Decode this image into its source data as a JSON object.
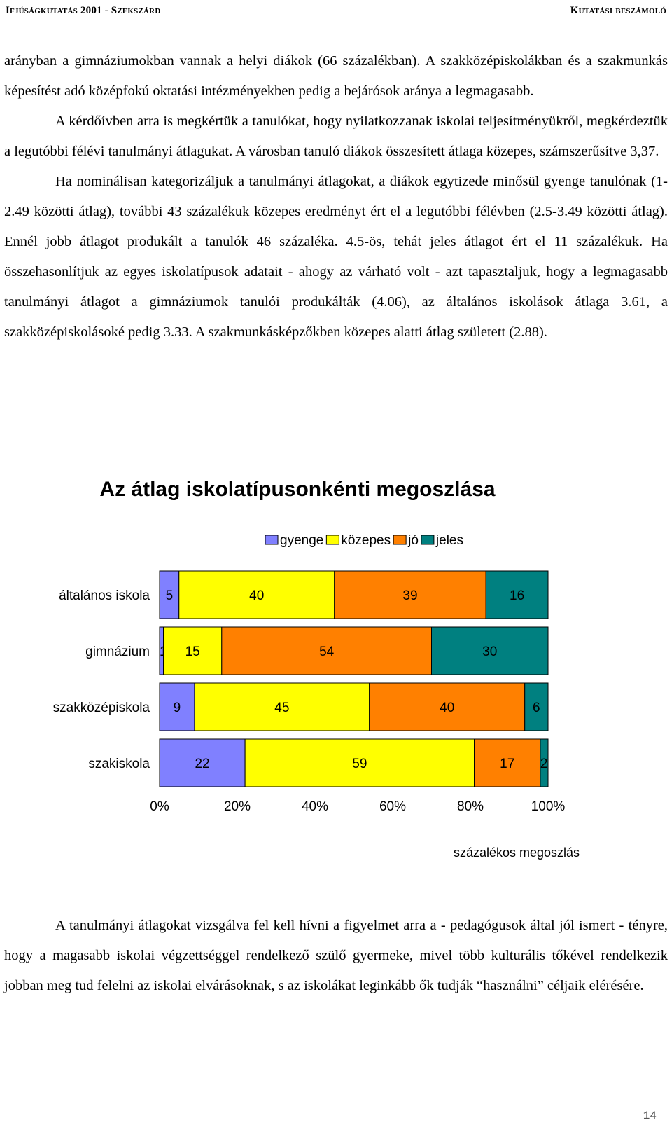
{
  "header": {
    "left": "Ifjúságkutatás 2001 - Szekszárd",
    "right": "Kutatási beszámoló"
  },
  "paragraphs_top": [
    "arányban a gimnáziumokban vannak a helyi diákok (66 százalékban). A szakközépiskolákban és a szakmunkás képesítést adó középfokú oktatási intézményekben pedig a bejárósok aránya a legmagasabb.",
    "A kérdőívben arra is megkértük a tanulókat, hogy nyilatkozzanak iskolai teljesítményükről, megkérdeztük a legutóbbi félévi tanulmányi átlagukat. A városban tanuló diákok összesített átlaga közepes, számszerűsítve 3,37.",
    "Ha nominálisan kategorizáljuk a tanulmányi átlagokat, a diákok egytizede minősül gyenge tanulónak (1-2.49 közötti átlag), további 43 százalékuk közepes eredményt ért el a legutóbbi félévben (2.5-3.49 közötti átlag). Ennél jobb átlagot produkált a tanulók 46 százaléka. 4.5-ös, tehát jeles átlagot ért el 11 százalékuk. Ha összehasonlítjuk az egyes iskolatípusok adatait - ahogy az várható volt - azt tapasztaljuk, hogy a legmagasabb tanulmányi átlagot a gimnáziumok tanulói produkálták (4.06), az általános iskolások átlaga 3.61, a szakközépiskolásoké pedig 3.33. A szakmunkásképzőkben közepes alatti átlag született (2.88)."
  ],
  "paragraph_bottom": "A tanulmányi átlagokat vizsgálva fel kell hívni a figyelmet arra a - pedagógusok által jól ismert - tényre, hogy a magasabb iskolai végzettséggel rendelkező szülő gyermeke, mivel több kulturális tőkével rendelkezik jobban meg tud felelni az iskolai elvárásoknak, s az iskolákat leginkább ők tudják “használni” céljaik elérésére.",
  "page_number": "14",
  "chart_data": {
    "type": "bar",
    "orientation": "horizontal",
    "stacked": "percent",
    "title": "Az átlag iskolatípusonkénti megoszlása",
    "xlabel": "százalékos megoszlás",
    "ylabel": "",
    "categories": [
      "általános iskola",
      "gimnázium",
      "szakközépiskola",
      "szakiskola"
    ],
    "series": [
      {
        "name": "gyenge",
        "color": "#8080ff",
        "values": [
          5,
          1,
          9,
          22
        ]
      },
      {
        "name": "közepes",
        "color": "#ffff00",
        "values": [
          40,
          15,
          45,
          59
        ]
      },
      {
        "name": "jó",
        "color": "#ff8000",
        "values": [
          39,
          54,
          40,
          17
        ]
      },
      {
        "name": "jeles",
        "color": "#008080",
        "values": [
          16,
          30,
          6,
          2
        ]
      }
    ],
    "xticks": [
      "0%",
      "20%",
      "40%",
      "60%",
      "80%",
      "100%"
    ],
    "xlim": [
      0,
      100
    ],
    "legend_position": "top",
    "grid": false,
    "data_labels": true
  }
}
